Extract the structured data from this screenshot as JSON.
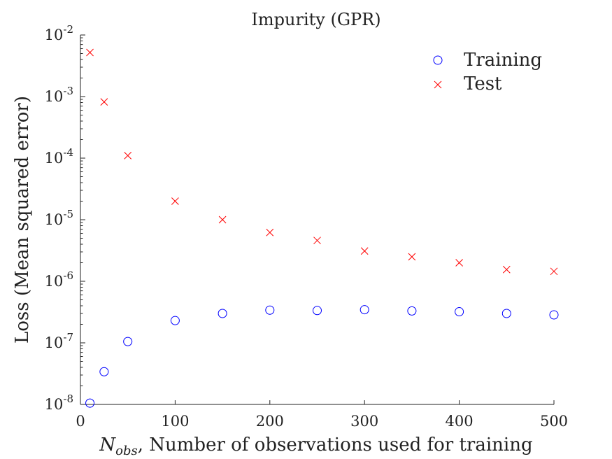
{
  "chart_data": {
    "type": "scatter",
    "title": "Impurity (GPR)",
    "xlabel_symbol": "N",
    "xlabel_subscript": "obs",
    "xlabel_rest": ", Number of observations used for training",
    "ylabel": "Loss (Mean squared error)",
    "xlim": [
      0,
      500
    ],
    "ylim": [
      1e-08,
      0.01
    ],
    "yscale": "log",
    "xticks": [
      0,
      100,
      200,
      300,
      400,
      500
    ],
    "xtick_labels": [
      "0",
      "100",
      "200",
      "300",
      "400",
      "500"
    ],
    "yticks": [
      1e-08,
      1e-07,
      1e-06,
      1e-05,
      0.0001,
      0.001,
      0.01
    ],
    "ytick_base": "10",
    "ytick_exponents": [
      "-8",
      "-7",
      "-6",
      "-5",
      "-4",
      "-3",
      "-2"
    ],
    "grid": false,
    "legend_position": "top-right",
    "x": [
      10,
      25,
      50,
      100,
      150,
      200,
      250,
      300,
      350,
      400,
      450,
      500
    ],
    "series": [
      {
        "name": "Training",
        "marker": "circle",
        "color": "#0000ff",
        "values": [
          1.05e-08,
          3.4e-08,
          1.05e-07,
          2.3e-07,
          3e-07,
          3.4e-07,
          3.35e-07,
          3.45e-07,
          3.3e-07,
          3.2e-07,
          3e-07,
          2.85e-07
        ]
      },
      {
        "name": "Test",
        "marker": "x",
        "color": "#ff0000",
        "values": [
          0.0052,
          0.00082,
          0.00011,
          2e-05,
          1e-05,
          6.2e-06,
          4.6e-06,
          3.1e-06,
          2.5e-06,
          2e-06,
          1.55e-06,
          1.45e-06
        ]
      }
    ]
  }
}
